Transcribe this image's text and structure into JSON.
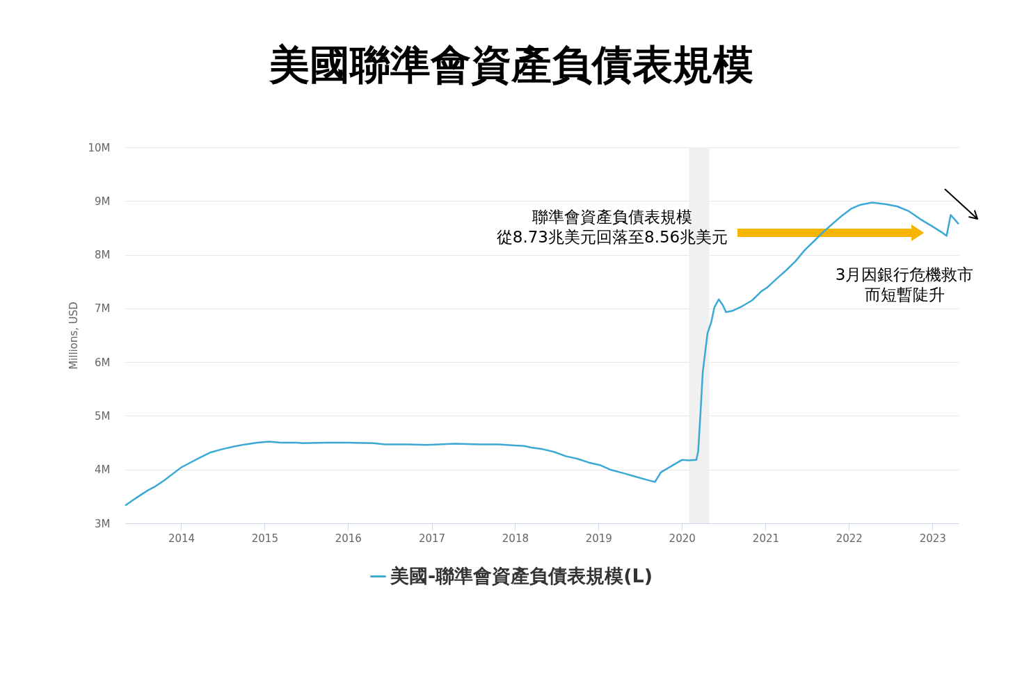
{
  "chart_data": {
    "type": "line",
    "title": "美國聯準會資產負債表規模",
    "ylabel": "Millions, USD",
    "x": [
      "2013-05-01",
      "2013-05-28",
      "2013-06-28",
      "2013-08-07",
      "2013-09-07",
      "2013-10-19",
      "2013-11-28",
      "2014-01-01",
      "2014-01-28",
      "2014-03-19",
      "2014-05-10",
      "2014-06-30",
      "2014-08-20",
      "2014-10-10",
      "2014-11-30",
      "2015-01-20",
      "2015-03-12",
      "2015-05-22",
      "2015-06-15",
      "2015-10-01",
      "2016-01-10",
      "2016-04-20",
      "2016-06-10",
      "2016-09-20",
      "2016-12-10",
      "2017-04-12",
      "2017-07-30",
      "2017-10-20",
      "2017-12-28",
      "2018-02-10",
      "2018-03-12",
      "2018-05-01",
      "2018-06-20",
      "2018-08-10",
      "2018-10-01",
      "2018-11-20",
      "2019-01-10",
      "2019-02-20",
      "2019-04-22",
      "2019-06-10",
      "2019-07-30",
      "2019-09-05",
      "2019-10-01",
      "2019-11-10",
      "2020-01-01",
      "2020-01-30",
      "2020-03-04",
      "2020-03-12",
      "2020-03-22",
      "2020-04-01",
      "2020-04-22",
      "2020-05-08",
      "2020-05-22",
      "2020-06-10",
      "2020-06-28",
      "2020-07-12",
      "2020-08-12",
      "2020-09-20",
      "2020-11-03",
      "2020-12-14",
      "2021-01-08",
      "2021-02-20",
      "2021-04-01",
      "2021-05-12",
      "2021-06-20",
      "2021-07-31",
      "2021-09-12",
      "2021-10-22",
      "2021-12-02",
      "2022-01-12",
      "2022-02-20",
      "2022-04-12",
      "2022-06-14",
      "2022-07-31",
      "2022-09-20",
      "2022-11-10",
      "2022-12-31",
      "2023-02-10",
      "2023-03-04",
      "2023-03-22",
      "2023-04-12",
      "2023-04-26"
    ],
    "series": [
      {
        "name": "美國-聯準會資產負債表規模(L)",
        "color": "#3ba9d3",
        "values": [
          3330000,
          3410000,
          3500000,
          3610000,
          3680000,
          3800000,
          3930000,
          4040000,
          4100000,
          4210000,
          4320000,
          4380000,
          4430000,
          4470000,
          4500000,
          4520000,
          4500000,
          4500000,
          4490000,
          4500000,
          4500000,
          4490000,
          4470000,
          4470000,
          4460000,
          4480000,
          4470000,
          4470000,
          4450000,
          4440000,
          4410000,
          4380000,
          4330000,
          4250000,
          4200000,
          4130000,
          4080000,
          4000000,
          3930000,
          3870000,
          3810000,
          3770000,
          3950000,
          4050000,
          4180000,
          4170000,
          4180000,
          4340000,
          5030000,
          5810000,
          6540000,
          6740000,
          7020000,
          7170000,
          7060000,
          6930000,
          6960000,
          7040000,
          7150000,
          7320000,
          7390000,
          7560000,
          7710000,
          7880000,
          8080000,
          8250000,
          8430000,
          8580000,
          8730000,
          8860000,
          8930000,
          8970000,
          8940000,
          8900000,
          8810000,
          8660000,
          8530000,
          8420000,
          8350000,
          8740000,
          8640000,
          8570000
        ]
      }
    ],
    "xlim": [
      "2013-05-01",
      "2023-04-26"
    ],
    "xticks": [
      "2014",
      "2015",
      "2016",
      "2017",
      "2018",
      "2019",
      "2020",
      "2021",
      "2022",
      "2023"
    ],
    "ylim": [
      3000000,
      10000000
    ],
    "yticks": [
      {
        "value": 3000000,
        "label": "3M"
      },
      {
        "value": 4000000,
        "label": "4M"
      },
      {
        "value": 5000000,
        "label": "5M"
      },
      {
        "value": 6000000,
        "label": "6M"
      },
      {
        "value": 7000000,
        "label": "7M"
      },
      {
        "value": 8000000,
        "label": "8M"
      },
      {
        "value": 9000000,
        "label": "9M"
      },
      {
        "value": 10000000,
        "label": "10M"
      }
    ],
    "grid": "y",
    "legend": "bottom",
    "bands": [
      {
        "axis": "x",
        "from": "2020-02-01",
        "to": "2020-04-30",
        "color": "#f0f0f0"
      }
    ],
    "annotations": [
      "聯準會資產負債表規模從8.73兆美元回落至8.56兆美元",
      "3月因銀行危機救市而短暫陡升"
    ]
  }
}
